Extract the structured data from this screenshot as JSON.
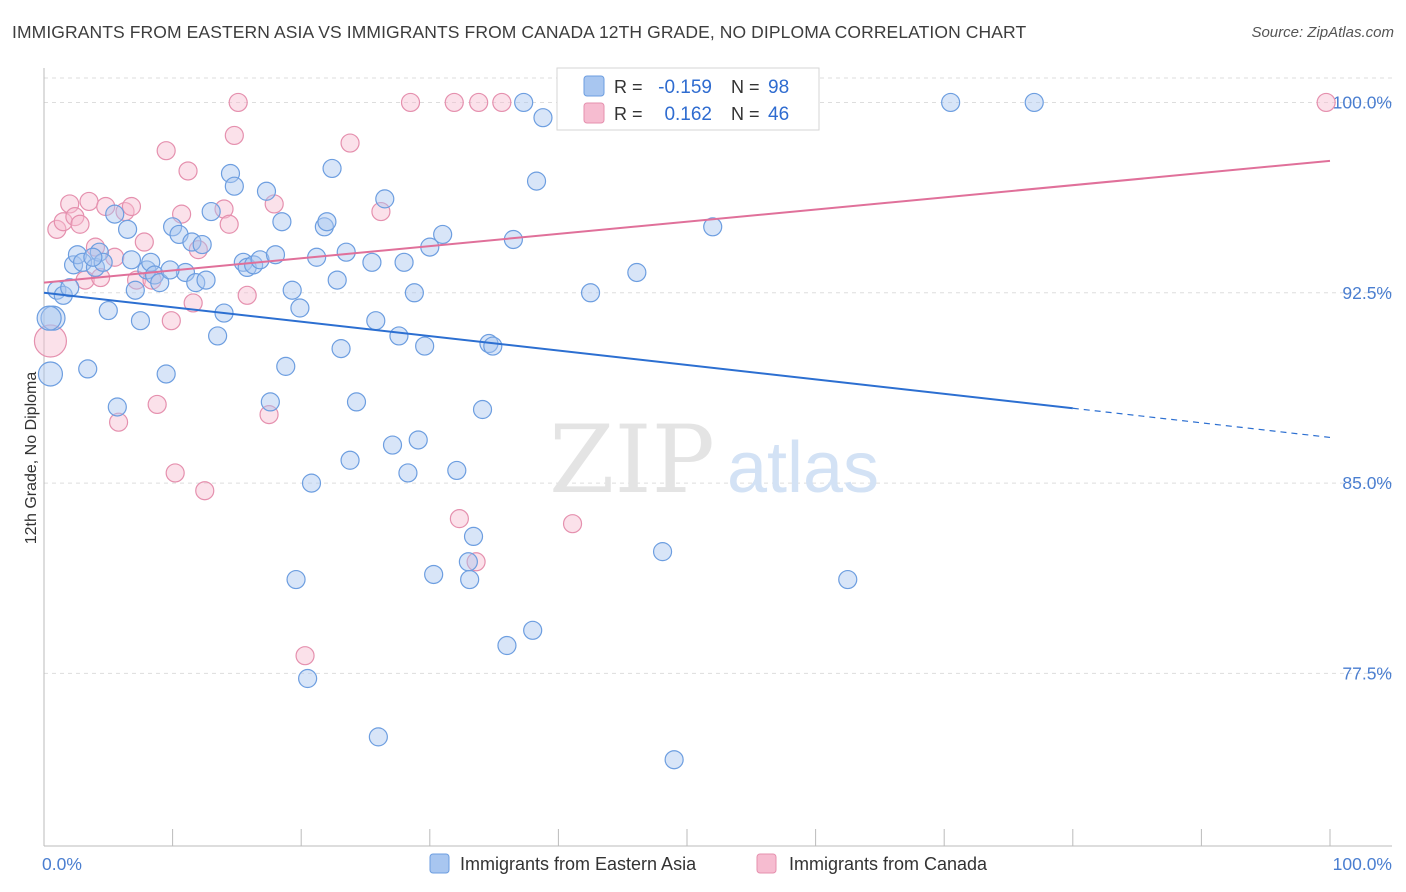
{
  "title": "IMMIGRANTS FROM EASTERN ASIA VS IMMIGRANTS FROM CANADA 12TH GRADE, NO DIPLOMA CORRELATION CHART",
  "source": "Source: ZipAtlas.com",
  "watermark": {
    "zip": "ZIP",
    "atlas": "atlas"
  },
  "colors": {
    "blue_fill": "#a8c6f0",
    "blue_stroke": "#6d9ee0",
    "blue_line": "#2c6fd1",
    "pink_fill": "#f6bcd0",
    "pink_stroke": "#e590ae",
    "pink_line": "#e0709a",
    "grid": "#dddddd",
    "tick_label": "#4a7ed0"
  },
  "legend_box": {
    "rows": [
      {
        "r_label": "R =",
        "r_value": "-0.159",
        "n_label": "N =",
        "n_value": "98",
        "series": "blue"
      },
      {
        "r_label": "R =",
        "r_value": "0.162",
        "n_label": "N =",
        "n_value": "46",
        "series": "pink"
      }
    ]
  },
  "chart_data": {
    "type": "scatter",
    "title": "IMMIGRANTS FROM EASTERN ASIA VS IMMIGRANTS FROM CANADA 12TH GRADE, NO DIPLOMA CORRELATION CHART",
    "xlabel": "",
    "ylabel": "12th Grade, No Diploma",
    "x_tick_labels": [
      "0.0%",
      "100.0%"
    ],
    "y_tick_labels": [
      "100.0%",
      "92.5%",
      "85.0%",
      "77.5%"
    ],
    "y_ticks": [
      100.0,
      92.5,
      85.0,
      77.5
    ],
    "xlim": [
      0,
      100
    ],
    "ylim": [
      70.7,
      101.2
    ],
    "grid": true,
    "legend": "top-center",
    "series": [
      {
        "name": "Immigrants from Eastern Asia",
        "color": "#a8c6f0",
        "trend": {
          "x": [
            0,
            80
          ],
          "y": [
            92.5,
            87.95
          ],
          "dashed_to": [
            100,
            86.8
          ]
        },
        "points": [
          [
            0.5,
            89.3
          ],
          [
            0.7,
            91.5
          ],
          [
            1.0,
            92.6
          ],
          [
            1.5,
            92.4
          ],
          [
            2.0,
            92.7
          ],
          [
            2.3,
            93.6
          ],
          [
            2.6,
            94.0
          ],
          [
            3.0,
            93.7
          ],
          [
            3.4,
            89.5
          ],
          [
            4.0,
            93.5
          ],
          [
            4.3,
            94.1
          ],
          [
            4.6,
            93.7
          ],
          [
            5.0,
            91.8
          ],
          [
            5.5,
            95.6
          ],
          [
            5.7,
            88.0
          ],
          [
            6.5,
            95.0
          ],
          [
            6.8,
            93.8
          ],
          [
            7.1,
            92.6
          ],
          [
            7.5,
            91.4
          ],
          [
            8.0,
            93.4
          ],
          [
            8.3,
            93.7
          ],
          [
            8.6,
            93.2
          ],
          [
            9.0,
            92.9
          ],
          [
            9.5,
            89.3
          ],
          [
            10.0,
            95.1
          ],
          [
            10.5,
            94.8
          ],
          [
            11.0,
            93.3
          ],
          [
            11.5,
            94.5
          ],
          [
            11.8,
            92.9
          ],
          [
            12.3,
            94.4
          ],
          [
            12.6,
            93.0
          ],
          [
            13.0,
            95.7
          ],
          [
            13.5,
            90.8
          ],
          [
            14.0,
            91.7
          ],
          [
            14.5,
            97.2
          ],
          [
            14.8,
            96.7
          ],
          [
            15.5,
            93.7
          ],
          [
            15.8,
            93.5
          ],
          [
            16.3,
            93.6
          ],
          [
            16.8,
            93.8
          ],
          [
            17.3,
            96.5
          ],
          [
            17.6,
            88.2
          ],
          [
            18.0,
            94.0
          ],
          [
            18.5,
            95.3
          ],
          [
            18.8,
            89.6
          ],
          [
            19.3,
            92.6
          ],
          [
            19.6,
            81.2
          ],
          [
            19.9,
            91.9
          ],
          [
            20.5,
            77.3
          ],
          [
            20.8,
            85.0
          ],
          [
            21.2,
            93.9
          ],
          [
            21.8,
            95.1
          ],
          [
            22.0,
            95.3
          ],
          [
            22.4,
            97.4
          ],
          [
            22.8,
            93.0
          ],
          [
            23.1,
            90.3
          ],
          [
            23.5,
            94.1
          ],
          [
            23.8,
            85.9
          ],
          [
            24.3,
            88.2
          ],
          [
            25.5,
            93.7
          ],
          [
            25.8,
            91.4
          ],
          [
            26.0,
            75.0
          ],
          [
            26.5,
            96.2
          ],
          [
            27.1,
            86.5
          ],
          [
            27.6,
            90.8
          ],
          [
            28.0,
            93.7
          ],
          [
            28.3,
            85.4
          ],
          [
            28.8,
            92.5
          ],
          [
            29.1,
            86.7
          ],
          [
            29.6,
            90.4
          ],
          [
            30.0,
            94.3
          ],
          [
            30.3,
            81.4
          ],
          [
            31.0,
            94.8
          ],
          [
            32.1,
            85.5
          ],
          [
            33.0,
            81.9
          ],
          [
            33.1,
            81.2
          ],
          [
            33.4,
            82.9
          ],
          [
            34.1,
            87.9
          ],
          [
            34.6,
            90.5
          ],
          [
            34.9,
            90.4
          ],
          [
            36.0,
            78.6
          ],
          [
            36.5,
            94.6
          ],
          [
            37.3,
            100.0
          ],
          [
            38.0,
            79.2
          ],
          [
            38.3,
            96.9
          ],
          [
            38.8,
            99.4
          ],
          [
            42.5,
            92.5
          ],
          [
            43.5,
            100.0
          ],
          [
            46.1,
            93.3
          ],
          [
            48.1,
            82.3
          ],
          [
            49.0,
            74.1
          ],
          [
            52.0,
            95.1
          ],
          [
            62.5,
            81.2
          ],
          [
            70.5,
            100.0
          ],
          [
            77.0,
            100.0
          ],
          [
            0.4,
            91.5
          ],
          [
            3.8,
            93.9
          ],
          [
            9.8,
            93.4
          ]
        ]
      },
      {
        "name": "Immigrants from Canada",
        "color": "#f6bcd0",
        "trend": {
          "x": [
            0,
            100
          ],
          "y": [
            92.9,
            97.7
          ]
        },
        "points": [
          [
            0.5,
            90.6
          ],
          [
            1.0,
            95.0
          ],
          [
            1.5,
            95.3
          ],
          [
            2.0,
            96.0
          ],
          [
            2.4,
            95.5
          ],
          [
            2.8,
            95.2
          ],
          [
            3.2,
            93.0
          ],
          [
            3.5,
            96.1
          ],
          [
            4.0,
            94.3
          ],
          [
            4.4,
            93.1
          ],
          [
            4.8,
            95.9
          ],
          [
            5.5,
            93.9
          ],
          [
            5.8,
            87.4
          ],
          [
            6.3,
            95.7
          ],
          [
            6.8,
            95.9
          ],
          [
            7.2,
            93.0
          ],
          [
            7.8,
            94.5
          ],
          [
            8.4,
            93.0
          ],
          [
            8.8,
            88.1
          ],
          [
            9.5,
            98.1
          ],
          [
            9.9,
            91.4
          ],
          [
            10.2,
            85.4
          ],
          [
            10.7,
            95.6
          ],
          [
            11.2,
            97.3
          ],
          [
            11.6,
            92.1
          ],
          [
            12.0,
            94.2
          ],
          [
            12.5,
            84.7
          ],
          [
            14.0,
            95.8
          ],
          [
            14.4,
            95.2
          ],
          [
            14.8,
            98.7
          ],
          [
            15.1,
            100.0
          ],
          [
            15.8,
            92.4
          ],
          [
            17.5,
            87.7
          ],
          [
            17.9,
            96.0
          ],
          [
            20.3,
            78.2
          ],
          [
            23.8,
            98.4
          ],
          [
            26.2,
            95.7
          ],
          [
            28.5,
            100.0
          ],
          [
            31.9,
            100.0
          ],
          [
            32.3,
            83.6
          ],
          [
            33.6,
            81.9
          ],
          [
            33.8,
            100.0
          ],
          [
            35.6,
            100.0
          ],
          [
            41.1,
            83.4
          ],
          [
            47.0,
            100.0
          ],
          [
            99.7,
            100.0
          ]
        ]
      }
    ]
  },
  "bottom_legend": [
    {
      "label": "Immigrants from Eastern Asia",
      "series": "blue"
    },
    {
      "label": "Immigrants from Canada",
      "series": "pink"
    }
  ]
}
